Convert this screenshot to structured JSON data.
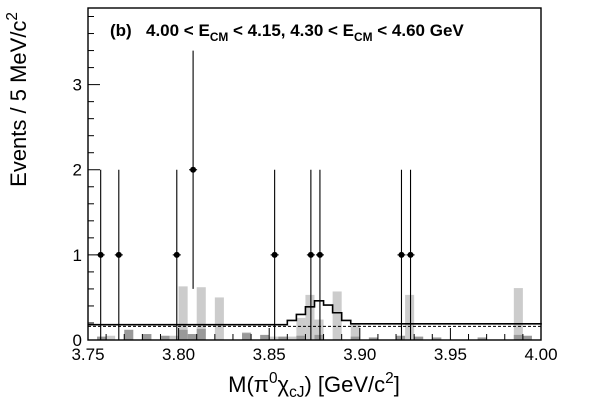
{
  "chart_data": {
    "type": "histogram",
    "title": {
      "panel": "(b)",
      "parts": [
        "4.00 < E",
        "CM",
        " < 4.15, 4.30 < E",
        "CM",
        " < 4.60 GeV"
      ]
    },
    "xlabel": {
      "parts": [
        "M(π",
        "0",
        "χ",
        "cJ",
        ")   [GeV/c",
        "2",
        "]"
      ]
    },
    "ylabel": {
      "parts": [
        "Events / 5 MeV/c",
        "2"
      ]
    },
    "xlim": [
      3.75,
      4.0
    ],
    "ylim": [
      0,
      3.9
    ],
    "x_ticks": [
      3.75,
      3.8,
      3.85,
      3.9,
      3.95,
      4.0
    ],
    "x_tick_labels": [
      "3.75",
      "3.80",
      "3.85",
      "3.90",
      "3.95",
      "4.00"
    ],
    "y_ticks": [
      0,
      1,
      2,
      3
    ],
    "y_tick_labels": [
      "0",
      "1",
      "2",
      "3"
    ],
    "data_points": [
      {
        "x": 3.757,
        "y": 1,
        "ylow": 0,
        "yhigh": 2.0
      },
      {
        "x": 3.767,
        "y": 1,
        "ylow": 0,
        "yhigh": 2.0
      },
      {
        "x": 3.799,
        "y": 1,
        "ylow": 0,
        "yhigh": 2.0
      },
      {
        "x": 3.808,
        "y": 2,
        "ylow": 0.6,
        "yhigh": 3.4
      },
      {
        "x": 3.853,
        "y": 1,
        "ylow": 0,
        "yhigh": 2.0
      },
      {
        "x": 3.873,
        "y": 1,
        "ylow": 0,
        "yhigh": 2.0
      },
      {
        "x": 3.878,
        "y": 1,
        "ylow": 0,
        "yhigh": 2.0
      },
      {
        "x": 3.923,
        "y": 1,
        "ylow": 0,
        "yhigh": 2.0
      },
      {
        "x": 3.928,
        "y": 1,
        "ylow": 0,
        "yhigh": 2.0
      }
    ],
    "light_gray_bins": [
      {
        "x0": 3.76,
        "x1": 3.765,
        "y": 0.05
      },
      {
        "x0": 3.795,
        "x1": 3.8,
        "y": 0.05
      },
      {
        "x0": 3.8,
        "x1": 3.805,
        "y": 0.63
      },
      {
        "x0": 3.81,
        "x1": 3.815,
        "y": 0.62
      },
      {
        "x0": 3.82,
        "x1": 3.825,
        "y": 0.5
      },
      {
        "x0": 3.835,
        "x1": 3.84,
        "y": 0.09
      },
      {
        "x0": 3.85,
        "x1": 3.855,
        "y": 0.04
      },
      {
        "x0": 3.86,
        "x1": 3.865,
        "y": 0.04
      },
      {
        "x0": 3.865,
        "x1": 3.87,
        "y": 0.26
      },
      {
        "x0": 3.87,
        "x1": 3.875,
        "y": 0.53
      },
      {
        "x0": 3.875,
        "x1": 3.88,
        "y": 0.24
      },
      {
        "x0": 3.885,
        "x1": 3.89,
        "y": 0.57
      },
      {
        "x0": 3.895,
        "x1": 3.9,
        "y": 0.18
      },
      {
        "x0": 3.925,
        "x1": 3.93,
        "y": 0.53
      },
      {
        "x0": 3.985,
        "x1": 3.99,
        "y": 0.61
      }
    ],
    "dark_gray_bins": [
      {
        "x0": 3.755,
        "x1": 3.76,
        "y": 0.04
      },
      {
        "x0": 3.77,
        "x1": 3.775,
        "y": 0.12
      },
      {
        "x0": 3.78,
        "x1": 3.785,
        "y": 0.07
      },
      {
        "x0": 3.79,
        "x1": 3.795,
        "y": 0.05
      },
      {
        "x0": 3.8,
        "x1": 3.805,
        "y": 0.12
      },
      {
        "x0": 3.805,
        "x1": 3.81,
        "y": 0.07
      },
      {
        "x0": 3.81,
        "x1": 3.815,
        "y": 0.13
      },
      {
        "x0": 3.835,
        "x1": 3.84,
        "y": 0.08
      },
      {
        "x0": 3.845,
        "x1": 3.85,
        "y": 0.06
      },
      {
        "x0": 3.855,
        "x1": 3.86,
        "y": 0.04
      },
      {
        "x0": 3.865,
        "x1": 3.87,
        "y": 0.05
      },
      {
        "x0": 3.875,
        "x1": 3.88,
        "y": 0.06
      },
      {
        "x0": 3.895,
        "x1": 3.9,
        "y": 0.04
      },
      {
        "x0": 3.905,
        "x1": 3.91,
        "y": 0.03
      },
      {
        "x0": 3.92,
        "x1": 3.925,
        "y": 0.05
      },
      {
        "x0": 3.93,
        "x1": 3.935,
        "y": 0.04
      },
      {
        "x0": 3.94,
        "x1": 3.945,
        "y": 0.03
      },
      {
        "x0": 3.965,
        "x1": 3.97,
        "y": 0.03
      },
      {
        "x0": 3.985,
        "x1": 3.99,
        "y": 0.06
      },
      {
        "x0": 3.99,
        "x1": 3.995,
        "y": 0.05
      }
    ],
    "total_fit": {
      "x": [
        3.75,
        3.855,
        3.86,
        3.865,
        3.87,
        3.875,
        3.88,
        3.885,
        3.89,
        3.895,
        4.0
      ],
      "y": [
        0.18,
        0.18,
        0.23,
        0.3,
        0.39,
        0.46,
        0.41,
        0.32,
        0.23,
        0.19,
        0.18
      ]
    },
    "background_fit": {
      "x": [
        3.75,
        4.0
      ],
      "y": [
        0.16,
        0.16
      ]
    },
    "colors": {
      "light_gray": "#cccccc",
      "dark_gray": "#999999",
      "data": "#000000",
      "fit": "#000000"
    }
  }
}
